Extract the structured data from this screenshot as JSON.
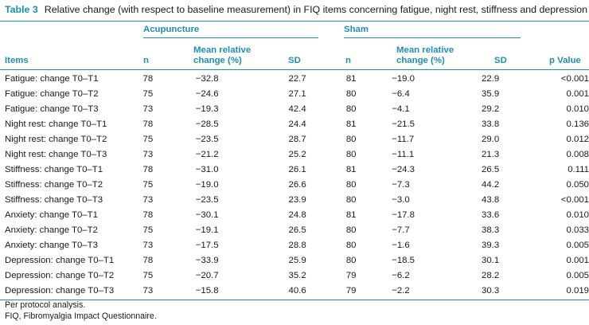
{
  "caption": {
    "label": "Table 3",
    "text": "Relative change (with respect to baseline measurement) in FIQ items concerning fatigue, night rest, stiffness and depression"
  },
  "groups": {
    "acupuncture": "Acupuncture",
    "sham": "Sham"
  },
  "headers": {
    "items": "Items",
    "n": "n",
    "mean_line1": "Mean relative",
    "mean_line2": "change (%)",
    "sd": "SD",
    "p_value": "p Value"
  },
  "rows": [
    {
      "item": "Fatigue: change T0–T1",
      "a_n": "78",
      "a_mean": "−32.8",
      "a_sd": "22.7",
      "s_n": "81",
      "s_mean": "−19.0",
      "s_sd": "22.9",
      "p": "<0.001"
    },
    {
      "item": "Fatigue: change T0–T2",
      "a_n": "75",
      "a_mean": "−24.6",
      "a_sd": "27.1",
      "s_n": "80",
      "s_mean": "−6.4",
      "s_sd": "35.9",
      "p": "0.001"
    },
    {
      "item": "Fatigue: change T0–T3",
      "a_n": "73",
      "a_mean": "−19.3",
      "a_sd": "42.4",
      "s_n": "80",
      "s_mean": "−4.1",
      "s_sd": "29.2",
      "p": "0.010"
    },
    {
      "item": "Night rest: change T0–T1",
      "a_n": "78",
      "a_mean": "−28.5",
      "a_sd": "24.4",
      "s_n": "81",
      "s_mean": "−21.5",
      "s_sd": "33.8",
      "p": "0.136"
    },
    {
      "item": "Night rest: change T0–T2",
      "a_n": "75",
      "a_mean": "−23.5",
      "a_sd": "28.7",
      "s_n": "80",
      "s_mean": "−11.7",
      "s_sd": "29.0",
      "p": "0.012"
    },
    {
      "item": "Night rest: change T0–T3",
      "a_n": "73",
      "a_mean": "−21.2",
      "a_sd": "25.2",
      "s_n": "80",
      "s_mean": "−11.1",
      "s_sd": "21.3",
      "p": "0.008"
    },
    {
      "item": "Stiffness: change T0–T1",
      "a_n": "78",
      "a_mean": "−31.0",
      "a_sd": "26.1",
      "s_n": "81",
      "s_mean": "−24.3",
      "s_sd": "26.5",
      "p": "0.111"
    },
    {
      "item": "Stiffness: change T0–T2",
      "a_n": "75",
      "a_mean": "−19.0",
      "a_sd": "26.6",
      "s_n": "80",
      "s_mean": "−7.3",
      "s_sd": "44.2",
      "p": "0.050"
    },
    {
      "item": "Stiffness: change T0–T3",
      "a_n": "73",
      "a_mean": "−23.5",
      "a_sd": "23.9",
      "s_n": "80",
      "s_mean": "−3.0",
      "s_sd": "43.8",
      "p": "<0.001"
    },
    {
      "item": "Anxiety: change T0–T1",
      "a_n": "78",
      "a_mean": "−30.1",
      "a_sd": "24.8",
      "s_n": "81",
      "s_mean": "−17.8",
      "s_sd": "33.6",
      "p": "0.010"
    },
    {
      "item": "Anxiety: change T0–T2",
      "a_n": "75",
      "a_mean": "−19.1",
      "a_sd": "26.5",
      "s_n": "80",
      "s_mean": "−7.7",
      "s_sd": "38.3",
      "p": "0.033"
    },
    {
      "item": "Anxiety: change T0–T3",
      "a_n": "73",
      "a_mean": "−17.5",
      "a_sd": "28.8",
      "s_n": "80",
      "s_mean": "−1.6",
      "s_sd": "39.3",
      "p": "0.005"
    },
    {
      "item": "Depression: change T0–T1",
      "a_n": "78",
      "a_mean": "−33.9",
      "a_sd": "25.9",
      "s_n": "80",
      "s_mean": "−18.5",
      "s_sd": "30.1",
      "p": "0.001"
    },
    {
      "item": "Depression: change T0–T2",
      "a_n": "75",
      "a_mean": "−20.7",
      "a_sd": "35.2",
      "s_n": "79",
      "s_mean": "−6.2",
      "s_sd": "28.2",
      "p": "0.005"
    },
    {
      "item": "Depression: change T0–T3",
      "a_n": "73",
      "a_mean": "−15.8",
      "a_sd": "40.6",
      "s_n": "79",
      "s_mean": "−2.2",
      "s_sd": "30.3",
      "p": "0.019"
    }
  ],
  "footnotes": [
    "Per protocol analysis.",
    "FIQ, Fibromyalgia Impact Questionnaire."
  ],
  "colors": {
    "accent": "#1f8fae",
    "text": "#1a1a1a"
  }
}
